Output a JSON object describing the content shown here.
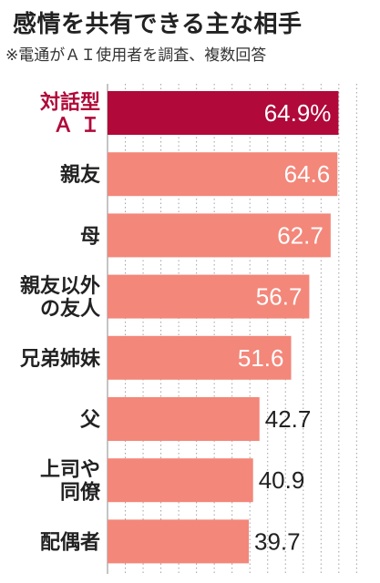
{
  "header": {
    "title": "感情を共有できる主な相手",
    "subtitle": "※電通がＡＩ使用者を調査、複数回答"
  },
  "colors": {
    "highlight": "#b0093a",
    "bar": "#f3877a",
    "grid": "#a0a0a0",
    "text": "#222222",
    "label_inside": "#ffffff"
  },
  "chart_data": {
    "type": "bar",
    "orientation": "horizontal",
    "categories": [
      "対話型\nＡ Ｉ",
      "親友",
      "母",
      "親友以外\nの友人",
      "兄弟姉妹",
      "父",
      "上司や\n同僚",
      "配偶者"
    ],
    "values": [
      64.9,
      64.6,
      62.7,
      56.7,
      51.6,
      42.7,
      40.9,
      39.7
    ],
    "value_labels": [
      "64.9%",
      "64.6",
      "62.7",
      "56.7",
      "51.6",
      "42.7",
      "40.9",
      "39.7"
    ],
    "highlight_index": 0,
    "xlim": [
      0,
      70
    ],
    "grid": true,
    "unit": "%"
  }
}
